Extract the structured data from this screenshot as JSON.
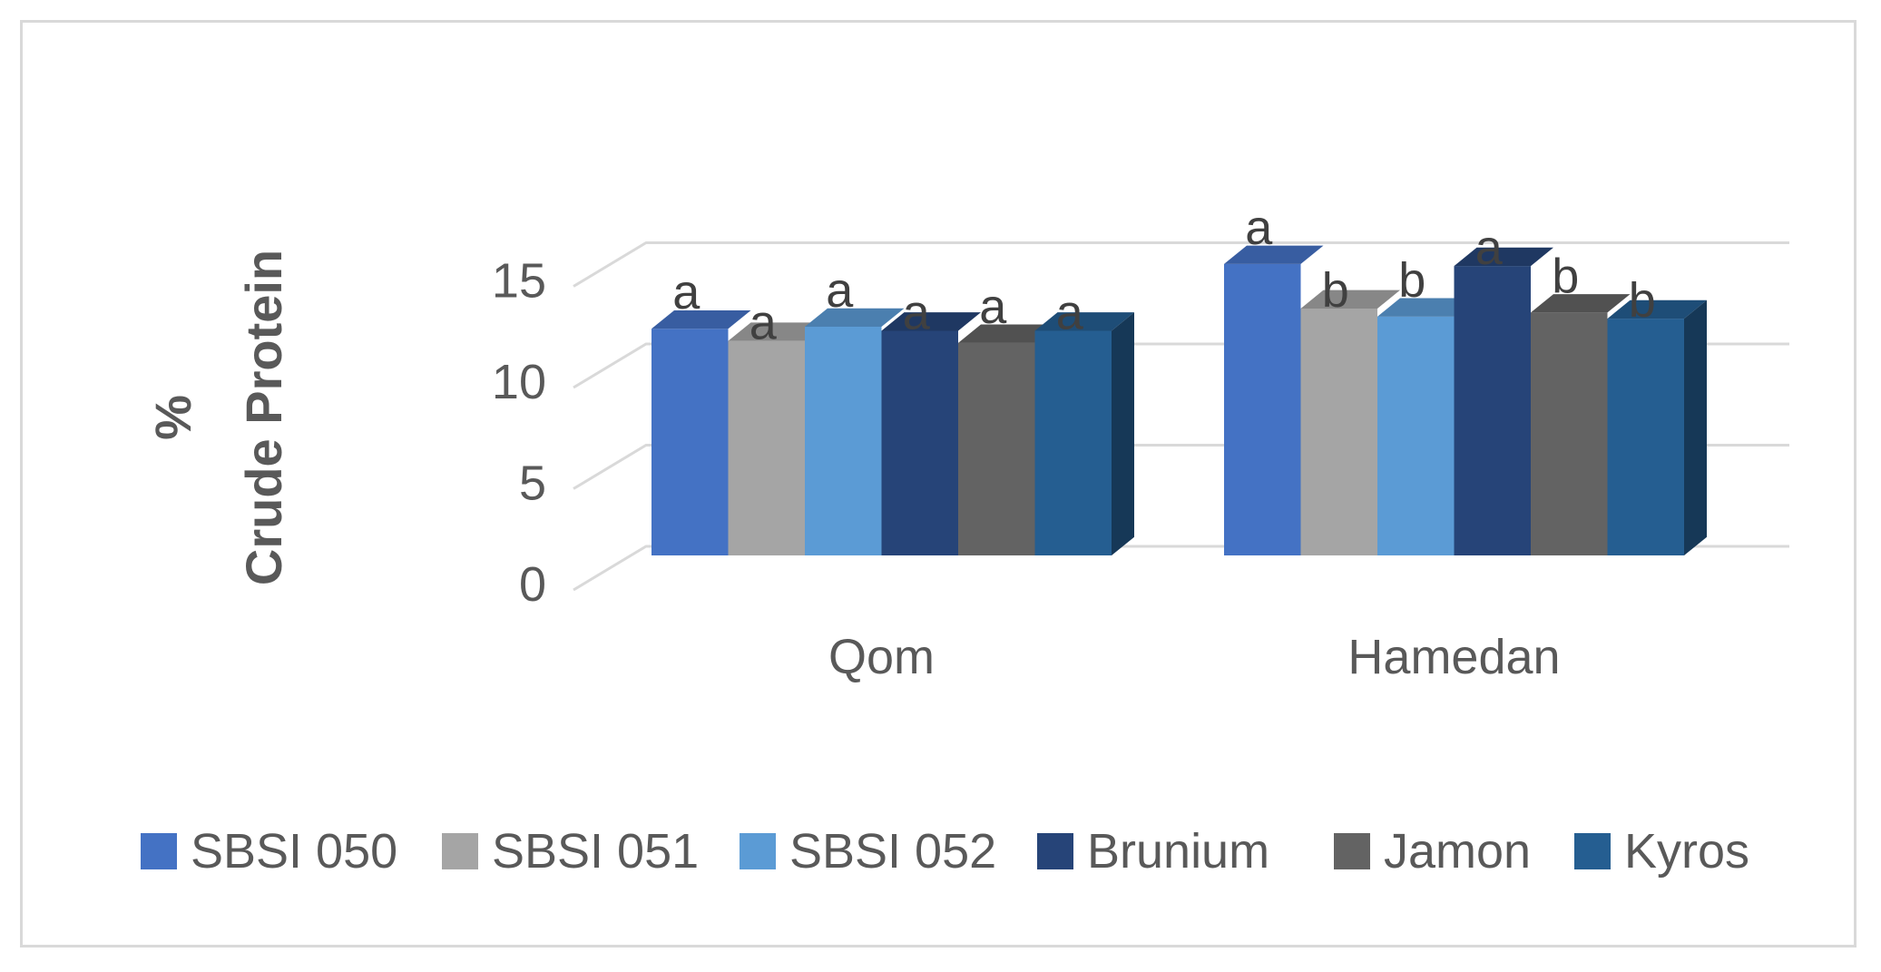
{
  "chart_data": {
    "type": "bar",
    "style": "3d-clustered-column",
    "categories": [
      "Qom",
      "Hamedan"
    ],
    "ylabel_line1": "%",
    "ylabel_line2": "Crude Protein",
    "ylim": [
      0,
      15
    ],
    "yticks": [
      0,
      5,
      10,
      15
    ],
    "grid": true,
    "legend_position": "bottom",
    "series": [
      {
        "name": "SBSI 050",
        "color": "#4472C4",
        "values": [
          11.2,
          14.4
        ],
        "labels": [
          "a",
          "a"
        ]
      },
      {
        "name": "SBSI 051",
        "color": "#A5A5A5",
        "values": [
          10.6,
          12.2
        ],
        "labels": [
          "a",
          "b"
        ]
      },
      {
        "name": "SBSI 052",
        "color": "#5B9BD5",
        "values": [
          11.3,
          11.8
        ],
        "labels": [
          "a",
          "b"
        ]
      },
      {
        "name": "Brunium",
        "color": "#264478",
        "values": [
          11.1,
          14.3
        ],
        "labels": [
          "a",
          "a"
        ]
      },
      {
        "name": "Jamon",
        "color": "#636363",
        "values": [
          10.5,
          12.0
        ],
        "labels": [
          "a",
          "b"
        ]
      },
      {
        "name": "Kyros",
        "color": "#255E91",
        "values": [
          11.1,
          11.7
        ],
        "labels": [
          "a",
          "b"
        ]
      }
    ]
  }
}
